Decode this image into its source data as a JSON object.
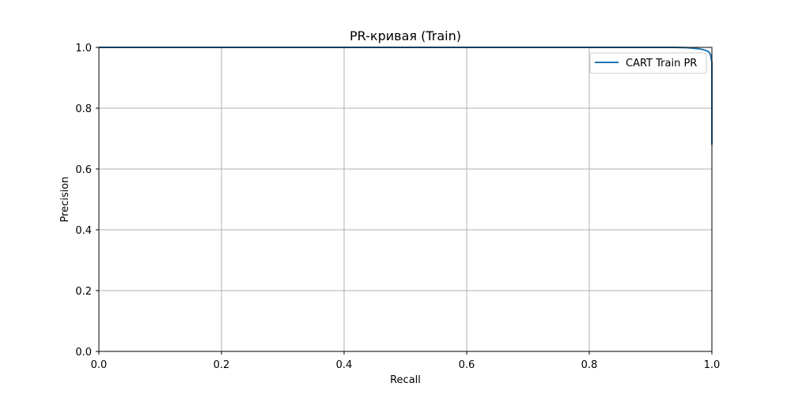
{
  "chart_data": {
    "type": "line",
    "title": "PR-кривая (Train)",
    "xlabel": "Recall",
    "ylabel": "Precision",
    "xlim": [
      0.0,
      1.0
    ],
    "ylim": [
      0.0,
      1.0
    ],
    "xticks": [
      "0.0",
      "0.2",
      "0.4",
      "0.6",
      "0.8",
      "1.0"
    ],
    "yticks": [
      "0.0",
      "0.2",
      "0.4",
      "0.6",
      "0.8",
      "1.0"
    ],
    "grid": true,
    "legend_position": "top-right",
    "series": [
      {
        "name": "CART Train PR",
        "color": "#1f77b4",
        "x": [
          0.0,
          0.9,
          0.94,
          0.96,
          0.97,
          0.98,
          0.985,
          0.99,
          0.995,
          0.998,
          1.0,
          1.0,
          1.0,
          1.0
        ],
        "y": [
          1.0,
          1.0,
          1.0,
          0.999,
          0.997,
          0.995,
          0.993,
          0.99,
          0.985,
          0.975,
          0.95,
          0.9,
          0.8,
          0.68
        ]
      }
    ]
  }
}
